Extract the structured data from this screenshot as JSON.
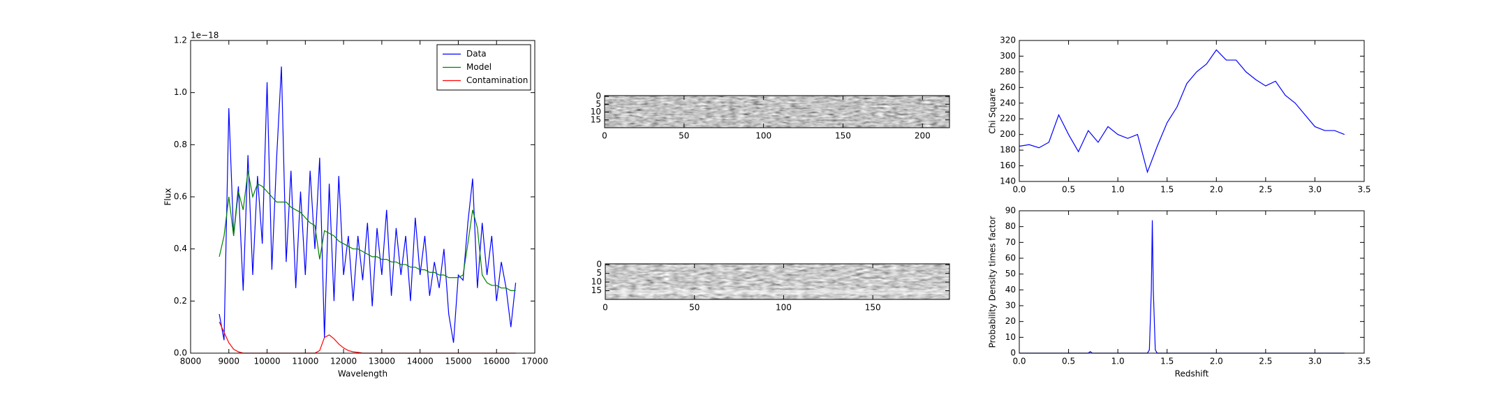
{
  "chart_data": [
    {
      "type": "line",
      "xlabel": "Wavelength",
      "ylabel": "Flux",
      "offset_text": "1e−18",
      "x": [
        8750,
        8875,
        9000,
        9125,
        9250,
        9375,
        9500,
        9625,
        9750,
        9875,
        10000,
        10125,
        10250,
        10375,
        10500,
        10625,
        10750,
        10875,
        11000,
        11125,
        11250,
        11375,
        11500,
        11625,
        11750,
        11875,
        12000,
        12125,
        12250,
        12375,
        12500,
        12625,
        12750,
        12875,
        13000,
        13125,
        13250,
        13375,
        13500,
        13625,
        13750,
        13875,
        14000,
        14125,
        14250,
        14375,
        14500,
        14625,
        14750,
        14875,
        15000,
        15125,
        15250,
        15375,
        15500,
        15625,
        15750,
        15875,
        16000,
        16125,
        16250,
        16375,
        16500
      ],
      "series": [
        {
          "name": "Data",
          "color": "#0000ff",
          "values": [
            0.15,
            0.05,
            0.94,
            0.45,
            0.64,
            0.24,
            0.76,
            0.3,
            0.68,
            0.42,
            1.04,
            0.32,
            0.75,
            1.1,
            0.35,
            0.7,
            0.25,
            0.62,
            0.3,
            0.7,
            0.4,
            0.75,
            0.06,
            0.65,
            0.2,
            0.68,
            0.3,
            0.45,
            0.2,
            0.45,
            0.28,
            0.5,
            0.18,
            0.48,
            0.3,
            0.55,
            0.22,
            0.48,
            0.3,
            0.45,
            0.2,
            0.52,
            0.3,
            0.45,
            0.22,
            0.35,
            0.25,
            0.4,
            0.15,
            0.04,
            0.3,
            0.28,
            0.5,
            0.67,
            0.25,
            0.5,
            0.3,
            0.45,
            0.2,
            0.35,
            0.25,
            0.1,
            0.27
          ]
        },
        {
          "name": "Model",
          "color": "#008000",
          "values": [
            0.37,
            0.45,
            0.6,
            0.45,
            0.62,
            0.55,
            0.7,
            0.6,
            0.65,
            0.64,
            0.62,
            0.6,
            0.58,
            0.58,
            0.58,
            0.56,
            0.55,
            0.54,
            0.52,
            0.5,
            0.49,
            0.36,
            0.47,
            0.46,
            0.45,
            0.43,
            0.42,
            0.41,
            0.4,
            0.4,
            0.39,
            0.38,
            0.37,
            0.37,
            0.36,
            0.36,
            0.35,
            0.35,
            0.34,
            0.34,
            0.33,
            0.33,
            0.32,
            0.32,
            0.31,
            0.31,
            0.3,
            0.3,
            0.29,
            0.29,
            0.29,
            0.3,
            0.42,
            0.55,
            0.48,
            0.3,
            0.27,
            0.26,
            0.26,
            0.25,
            0.25,
            0.24,
            0.24
          ]
        },
        {
          "name": "Contamination",
          "color": "#ff0000",
          "values": [
            0.12,
            0.08,
            0.04,
            0.015,
            0.005,
            0,
            0,
            0,
            0,
            0,
            0,
            0,
            0,
            0,
            0,
            0,
            0,
            0,
            0,
            0,
            0,
            0.01,
            0.06,
            0.07,
            0.055,
            0.035,
            0.02,
            0.01,
            0.005,
            0.003,
            0,
            0,
            0,
            0,
            0,
            0,
            0,
            0,
            0,
            0,
            0,
            0,
            0,
            0,
            0,
            0,
            0,
            0,
            0,
            0,
            0,
            0,
            0,
            0,
            0,
            0,
            0,
            0,
            0,
            0,
            0,
            0,
            0
          ]
        }
      ],
      "xlim": [
        8000,
        17000
      ],
      "xticks": [
        8000,
        9000,
        10000,
        11000,
        12000,
        13000,
        14000,
        15000,
        16000,
        17000
      ],
      "ylim": [
        0,
        1.2
      ],
      "yticks": [
        {
          "value": 0,
          "label": "0.0"
        },
        0.2,
        0.4,
        0.6,
        0.8,
        {
          "value": 1,
          "label": "1.0"
        },
        1.2
      ],
      "legend": "upper right"
    },
    {
      "type": "image",
      "xlim": [
        0,
        217
      ],
      "xticks": [
        0,
        50,
        100,
        150,
        200
      ],
      "ylim": [
        20,
        -0.5
      ],
      "yticks": [
        0,
        5,
        10,
        15
      ]
    },
    {
      "type": "image",
      "xlim": [
        0,
        193
      ],
      "xticks": [
        0,
        50,
        100,
        150
      ],
      "ylim": [
        20,
        -0.5
      ],
      "yticks": [
        0,
        5,
        10,
        15
      ]
    },
    {
      "type": "line",
      "ylabel": "Chi Square",
      "x": [
        0,
        0.1,
        0.2,
        0.3,
        0.4,
        0.5,
        0.6,
        0.7,
        0.8,
        0.9,
        1.0,
        1.1,
        1.2,
        1.3,
        1.4,
        1.5,
        1.6,
        1.7,
        1.8,
        1.9,
        2.0,
        2.1,
        2.2,
        2.3,
        2.4,
        2.5,
        2.6,
        2.7,
        2.8,
        2.9,
        3.0,
        3.1,
        3.2,
        3.3
      ],
      "series": [
        {
          "color": "#0000ff",
          "values": [
            185,
            187,
            183,
            190,
            225,
            200,
            178,
            205,
            190,
            210,
            200,
            195,
            200,
            152,
            185,
            215,
            235,
            265,
            280,
            290,
            308,
            295,
            295,
            280,
            270,
            262,
            268,
            250,
            240,
            225,
            210,
            205,
            205,
            200
          ]
        }
      ],
      "xlim": [
        0,
        3.5
      ],
      "xticks": [
        {
          "value": 0,
          "label": "0.0"
        },
        0.5,
        {
          "value": 1,
          "label": "1.0"
        },
        1.5,
        {
          "value": 2,
          "label": "2.0"
        },
        2.5,
        {
          "value": 3,
          "label": "3.0"
        },
        3.5
      ],
      "ylim": [
        140,
        320
      ],
      "yticks": [
        140,
        160,
        180,
        200,
        220,
        240,
        260,
        280,
        300,
        320
      ]
    },
    {
      "type": "line",
      "xlabel": "Redshift",
      "ylabel": "Probability Density times factor",
      "x": [
        0,
        0.5,
        0.7,
        0.72,
        0.74,
        1.0,
        1.3,
        1.32,
        1.34,
        1.35,
        1.36,
        1.38,
        1.4,
        2.0,
        3.3
      ],
      "series": [
        {
          "color": "#0000ff",
          "values": [
            0,
            0,
            0,
            1,
            0,
            0,
            0,
            2,
            40,
            84,
            40,
            2,
            0,
            0,
            0
          ]
        }
      ],
      "xlim": [
        0,
        3.5
      ],
      "xticks": [
        {
          "value": 0,
          "label": "0.0"
        },
        0.5,
        {
          "value": 1,
          "label": "1.0"
        },
        1.5,
        {
          "value": 2,
          "label": "2.0"
        },
        2.5,
        {
          "value": 3,
          "label": "3.0"
        },
        3.5
      ],
      "ylim": [
        0,
        90
      ],
      "yticks": [
        0,
        10,
        20,
        30,
        40,
        50,
        60,
        70,
        80,
        90
      ]
    }
  ]
}
